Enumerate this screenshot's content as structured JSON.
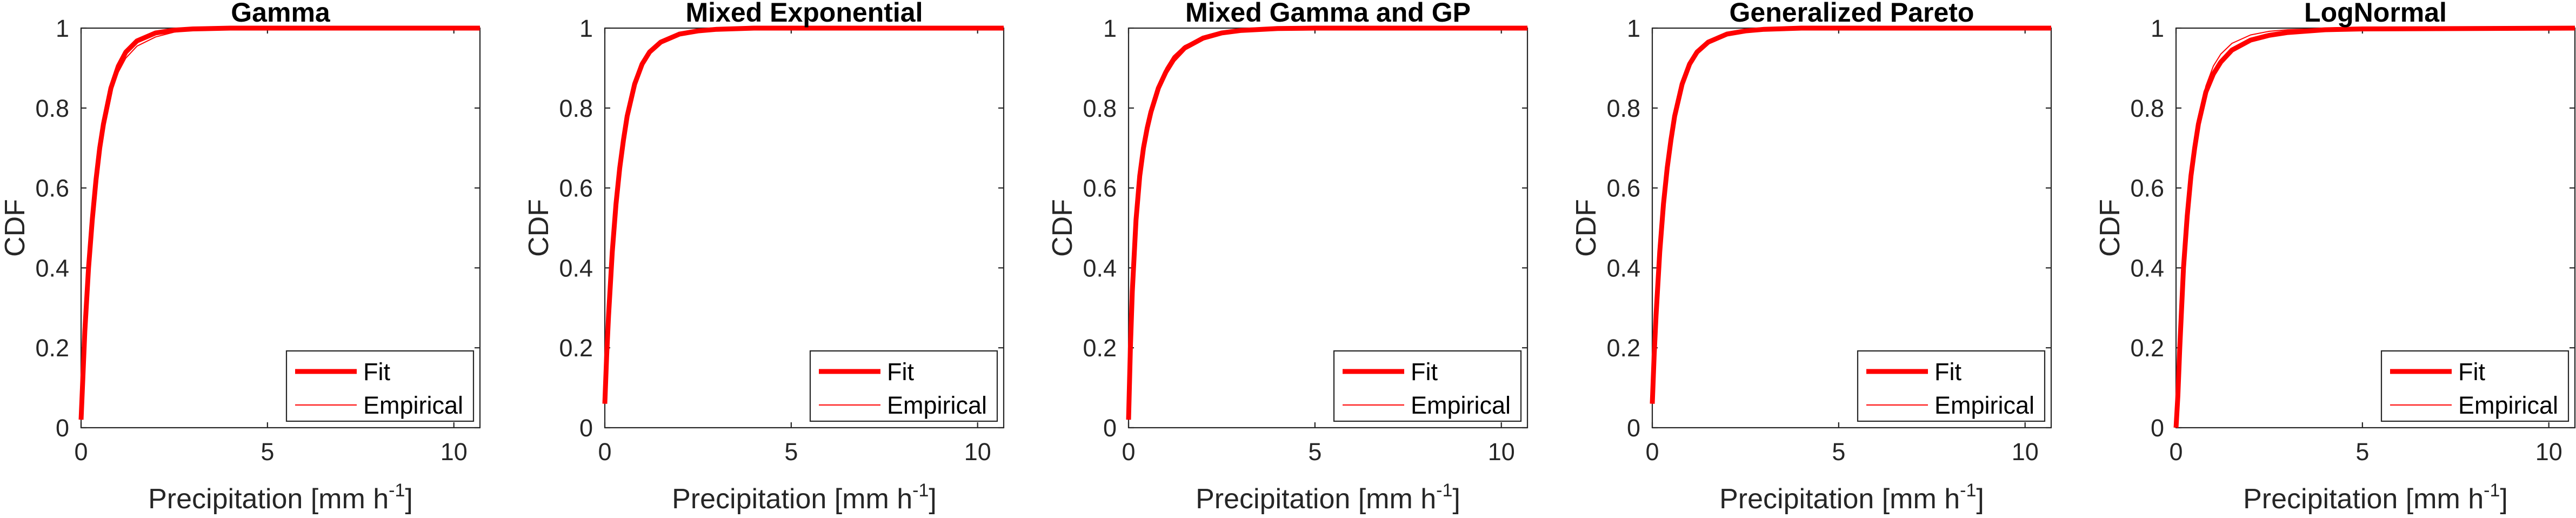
{
  "chart_data": [
    {
      "type": "line",
      "title": "Gamma",
      "xlabel": "Precipitation [mm h",
      "xlabel_sup": "-1",
      "xlabel_end": "]",
      "ylabel": "CDF",
      "xlim": [
        0,
        10.7
      ],
      "ylim": [
        0,
        1
      ],
      "xticks": [
        0,
        5,
        10
      ],
      "yticks": [
        0,
        0.2,
        0.4,
        0.6,
        0.8,
        1
      ],
      "ytick_labels": [
        "0",
        "0.2",
        "0.4",
        "0.6",
        "0.8",
        "1"
      ],
      "legend_position": "bottom-right",
      "series": [
        {
          "name": "Fit",
          "color": "#ff0000",
          "linewidth": "thick",
          "x": [
            0,
            0.1,
            0.2,
            0.3,
            0.4,
            0.5,
            0.6,
            0.8,
            1.0,
            1.2,
            1.5,
            2.0,
            2.5,
            3.0,
            4.0,
            5.0,
            10.7
          ],
          "y": [
            0.02,
            0.24,
            0.4,
            0.52,
            0.62,
            0.7,
            0.76,
            0.85,
            0.905,
            0.94,
            0.968,
            0.988,
            0.995,
            0.998,
            1.0,
            1.0,
            1.0
          ]
        },
        {
          "name": "Empirical",
          "color": "#ff0000",
          "linewidth": "thin",
          "x": [
            0,
            0.1,
            0.2,
            0.3,
            0.4,
            0.5,
            0.6,
            0.8,
            1.0,
            1.2,
            1.5,
            2.0,
            2.5,
            3.0,
            4.0,
            5.0,
            10.7
          ],
          "y": [
            0.05,
            0.26,
            0.42,
            0.54,
            0.63,
            0.7,
            0.76,
            0.84,
            0.89,
            0.925,
            0.955,
            0.978,
            0.99,
            0.995,
            0.999,
            1.0,
            1.0
          ]
        }
      ]
    },
    {
      "type": "line",
      "title": "Mixed Exponential",
      "xlabel": "Precipitation [mm h",
      "xlabel_sup": "-1",
      "xlabel_end": "]",
      "ylabel": "CDF",
      "xlim": [
        0,
        10.7
      ],
      "ylim": [
        0,
        1
      ],
      "xticks": [
        0,
        5,
        10
      ],
      "yticks": [
        0,
        0.2,
        0.4,
        0.6,
        0.8,
        1
      ],
      "ytick_labels": [
        "0",
        "0.2",
        "0.4",
        "0.6",
        "0.8",
        "1"
      ],
      "legend_position": "bottom-right",
      "series": [
        {
          "name": "Fit",
          "color": "#ff0000",
          "linewidth": "thick",
          "x": [
            0,
            0.05,
            0.1,
            0.2,
            0.3,
            0.4,
            0.5,
            0.6,
            0.8,
            1.0,
            1.2,
            1.5,
            2.0,
            2.5,
            3.0,
            4.0,
            5.0,
            10.7
          ],
          "y": [
            0.06,
            0.18,
            0.28,
            0.44,
            0.56,
            0.65,
            0.72,
            0.78,
            0.86,
            0.91,
            0.94,
            0.965,
            0.985,
            0.993,
            0.997,
            1.0,
            1.0,
            1.0
          ]
        },
        {
          "name": "Empirical",
          "color": "#ff0000",
          "linewidth": "thin",
          "x": [
            0,
            0.05,
            0.1,
            0.2,
            0.3,
            0.4,
            0.5,
            0.6,
            0.8,
            1.0,
            1.2,
            1.5,
            2.0,
            2.5,
            3.0,
            4.0,
            5.0,
            10.7
          ],
          "y": [
            0.06,
            0.17,
            0.27,
            0.43,
            0.55,
            0.64,
            0.71,
            0.77,
            0.855,
            0.905,
            0.935,
            0.962,
            0.983,
            0.992,
            0.996,
            0.999,
            1.0,
            1.0
          ]
        }
      ]
    },
    {
      "type": "line",
      "title": "Mixed Gamma and GP",
      "xlabel": "Precipitation [mm h",
      "xlabel_sup": "-1",
      "xlabel_end": "]",
      "ylabel": "CDF",
      "xlim": [
        0,
        10.7
      ],
      "ylim": [
        0,
        1
      ],
      "xticks": [
        0,
        5,
        10
      ],
      "yticks": [
        0,
        0.2,
        0.4,
        0.6,
        0.8,
        1
      ],
      "ytick_labels": [
        "0",
        "0.2",
        "0.4",
        "0.6",
        "0.8",
        "1"
      ],
      "legend_position": "bottom-right",
      "series": [
        {
          "name": "Fit",
          "color": "#ff0000",
          "linewidth": "thick",
          "x": [
            0,
            0.05,
            0.1,
            0.2,
            0.3,
            0.4,
            0.5,
            0.6,
            0.8,
            1.0,
            1.2,
            1.5,
            2.0,
            2.5,
            3.0,
            4.0,
            5.0,
            10.7
          ],
          "y": [
            0.02,
            0.2,
            0.34,
            0.52,
            0.63,
            0.7,
            0.75,
            0.79,
            0.85,
            0.89,
            0.92,
            0.95,
            0.975,
            0.988,
            0.994,
            0.999,
            1.0,
            1.0
          ]
        },
        {
          "name": "Empirical",
          "color": "#ff0000",
          "linewidth": "thin",
          "x": [
            0,
            0.05,
            0.1,
            0.2,
            0.3,
            0.4,
            0.5,
            0.6,
            0.8,
            1.0,
            1.2,
            1.5,
            2.0,
            2.5,
            3.0,
            4.0,
            5.0,
            10.7
          ],
          "y": [
            0.05,
            0.2,
            0.33,
            0.5,
            0.62,
            0.7,
            0.76,
            0.8,
            0.86,
            0.9,
            0.93,
            0.956,
            0.978,
            0.99,
            0.995,
            0.999,
            1.0,
            1.0
          ]
        }
      ]
    },
    {
      "type": "line",
      "title": "Generalized Pareto",
      "xlabel": "Precipitation [mm h",
      "xlabel_sup": "-1",
      "xlabel_end": "]",
      "ylabel": "CDF",
      "xlim": [
        0,
        10.7
      ],
      "ylim": [
        0,
        1
      ],
      "xticks": [
        0,
        5,
        10
      ],
      "yticks": [
        0,
        0.2,
        0.4,
        0.6,
        0.8,
        1
      ],
      "ytick_labels": [
        "0",
        "0.2",
        "0.4",
        "0.6",
        "0.8",
        "1"
      ],
      "legend_position": "bottom-right",
      "series": [
        {
          "name": "Fit",
          "color": "#ff0000",
          "linewidth": "thick",
          "x": [
            0,
            0.05,
            0.1,
            0.2,
            0.3,
            0.4,
            0.5,
            0.6,
            0.8,
            1.0,
            1.2,
            1.5,
            2.0,
            2.5,
            3.0,
            4.0,
            5.0,
            10.7
          ],
          "y": [
            0.06,
            0.18,
            0.28,
            0.44,
            0.56,
            0.65,
            0.72,
            0.78,
            0.86,
            0.91,
            0.94,
            0.965,
            0.985,
            0.993,
            0.997,
            1.0,
            1.0,
            1.0
          ]
        },
        {
          "name": "Empirical",
          "color": "#ff0000",
          "linewidth": "thin",
          "x": [
            0,
            0.05,
            0.1,
            0.2,
            0.3,
            0.4,
            0.5,
            0.6,
            0.8,
            1.0,
            1.2,
            1.5,
            2.0,
            2.5,
            3.0,
            4.0,
            5.0,
            10.7
          ],
          "y": [
            0.06,
            0.17,
            0.27,
            0.43,
            0.55,
            0.64,
            0.71,
            0.77,
            0.855,
            0.905,
            0.935,
            0.962,
            0.983,
            0.992,
            0.996,
            0.999,
            1.0,
            1.0
          ]
        }
      ]
    },
    {
      "type": "line",
      "title": "LogNormal",
      "xlabel": "Precipitation [mm h",
      "xlabel_sup": "-1",
      "xlabel_end": "]",
      "ylabel": "CDF",
      "xlim": [
        0,
        10.7
      ],
      "ylim": [
        0,
        1
      ],
      "xticks": [
        0,
        5,
        10
      ],
      "yticks": [
        0,
        0.2,
        0.4,
        0.6,
        0.8,
        1
      ],
      "ytick_labels": [
        "0",
        "0.2",
        "0.4",
        "0.6",
        "0.8",
        "1"
      ],
      "legend_position": "bottom-right",
      "series": [
        {
          "name": "Fit",
          "color": "#ff0000",
          "linewidth": "thick",
          "x": [
            0,
            0.05,
            0.1,
            0.2,
            0.3,
            0.4,
            0.5,
            0.6,
            0.8,
            1.0,
            1.2,
            1.5,
            2.0,
            2.5,
            3.0,
            4.0,
            5.0,
            10.7
          ],
          "y": [
            0.0,
            0.08,
            0.2,
            0.4,
            0.53,
            0.63,
            0.7,
            0.76,
            0.84,
            0.885,
            0.915,
            0.945,
            0.97,
            0.982,
            0.989,
            0.996,
            0.998,
            1.0
          ]
        },
        {
          "name": "Empirical",
          "color": "#ff0000",
          "linewidth": "thin",
          "x": [
            0,
            0.05,
            0.1,
            0.2,
            0.3,
            0.4,
            0.5,
            0.6,
            0.8,
            1.0,
            1.2,
            1.5,
            2.0,
            2.5,
            3.0,
            4.0,
            5.0,
            10.7
          ],
          "y": [
            0.05,
            0.17,
            0.27,
            0.43,
            0.55,
            0.64,
            0.71,
            0.77,
            0.855,
            0.905,
            0.935,
            0.962,
            0.983,
            0.992,
            0.996,
            0.999,
            1.0,
            1.0
          ]
        }
      ]
    }
  ]
}
